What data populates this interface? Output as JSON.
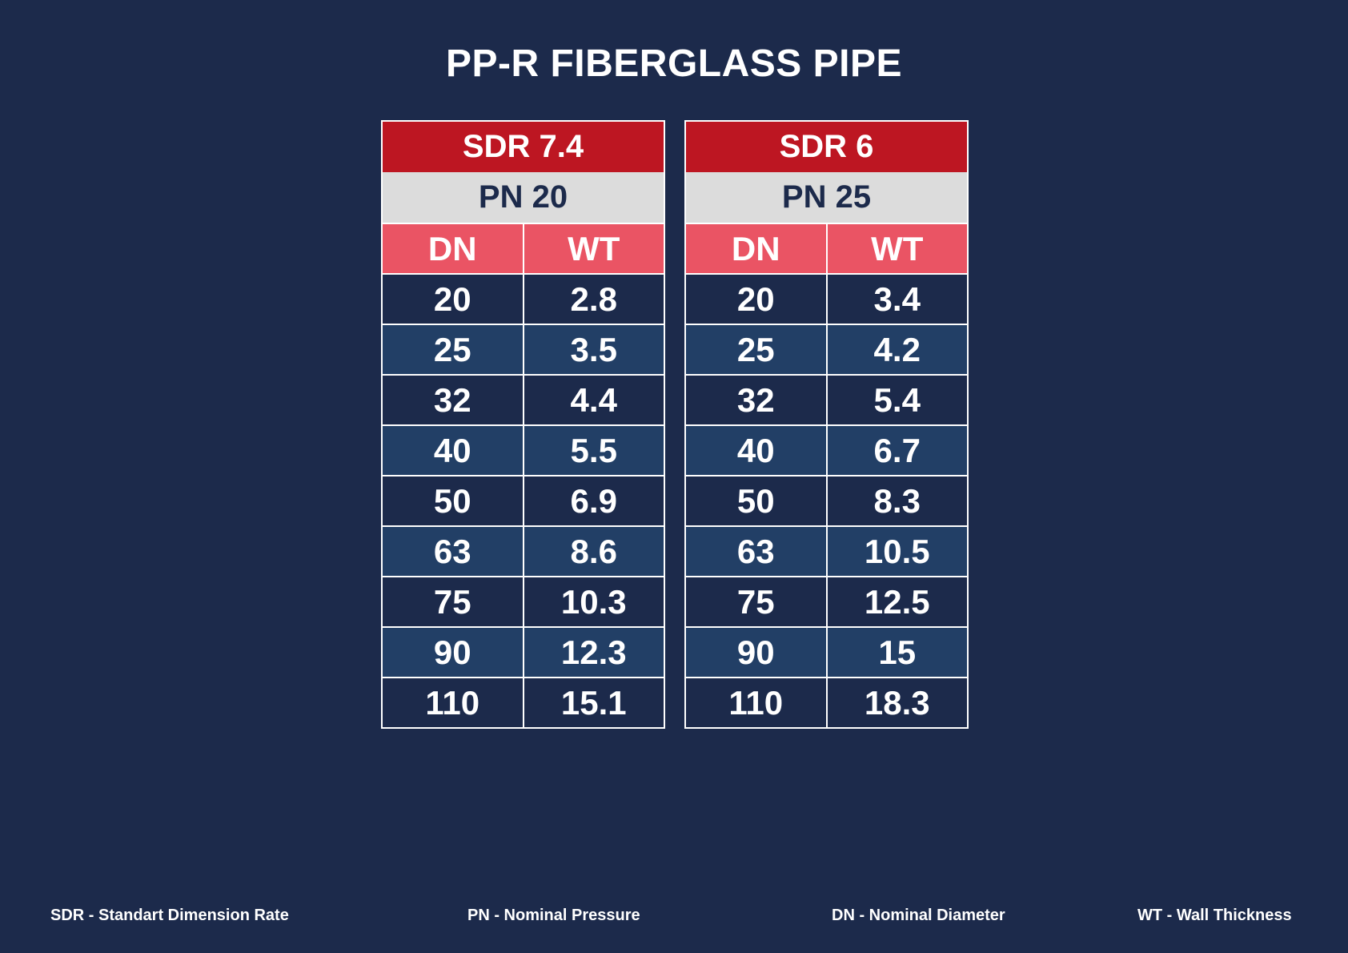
{
  "title": "PP-R FIBERGLASS PIPE",
  "colors": {
    "background": "#1c2a4b",
    "sdr_header": "#bd1622",
    "pn_header": "#dcdcdc",
    "col_header": "#ea5464",
    "row_dark": "#1c2a4b",
    "row_light": "#223f66"
  },
  "tables": [
    {
      "sdr": "SDR 7.4",
      "pn": "PN 20",
      "col_dn": "DN",
      "col_wt": "WT",
      "rows": [
        {
          "dn": "20",
          "wt": "2.8"
        },
        {
          "dn": "25",
          "wt": "3.5"
        },
        {
          "dn": "32",
          "wt": "4.4"
        },
        {
          "dn": "40",
          "wt": "5.5"
        },
        {
          "dn": "50",
          "wt": "6.9"
        },
        {
          "dn": "63",
          "wt": "8.6"
        },
        {
          "dn": "75",
          "wt": "10.3"
        },
        {
          "dn": "90",
          "wt": "12.3"
        },
        {
          "dn": "110",
          "wt": "15.1"
        }
      ]
    },
    {
      "sdr": "SDR 6",
      "pn": "PN 25",
      "col_dn": "DN",
      "col_wt": "WT",
      "rows": [
        {
          "dn": "20",
          "wt": "3.4"
        },
        {
          "dn": "25",
          "wt": "4.2"
        },
        {
          "dn": "32",
          "wt": "5.4"
        },
        {
          "dn": "40",
          "wt": "6.7"
        },
        {
          "dn": "50",
          "wt": "8.3"
        },
        {
          "dn": "63",
          "wt": "10.5"
        },
        {
          "dn": "75",
          "wt": "12.5"
        },
        {
          "dn": "90",
          "wt": "15"
        },
        {
          "dn": "110",
          "wt": "18.3"
        }
      ]
    }
  ],
  "legend": {
    "sdr": "SDR - Standart Dimension Rate",
    "pn": "PN - Nominal Pressure",
    "dn": "DN - Nominal Diameter",
    "wt": "WT - Wall Thickness"
  }
}
